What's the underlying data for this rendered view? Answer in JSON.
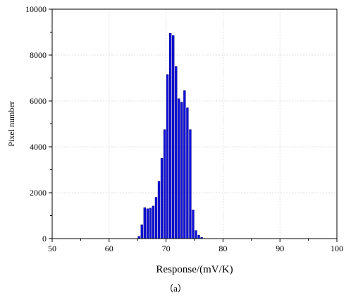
{
  "chart_data": {
    "type": "bar",
    "title": "",
    "xlabel": "Response/(mV/K)",
    "ylabel": "Pixel number",
    "xlim": [
      50,
      100
    ],
    "ylim": [
      0,
      10000
    ],
    "x_ticks": [
      50,
      60,
      70,
      80,
      90,
      100
    ],
    "y_ticks": [
      0,
      2000,
      4000,
      6000,
      8000,
      10000
    ],
    "grid": true,
    "bar_color": "#1010e0",
    "bar_edge_color": "#000080",
    "bin_width": 0.5,
    "x": [
      65.25,
      65.75,
      66.25,
      66.75,
      67.25,
      67.75,
      68.25,
      68.75,
      69.25,
      69.75,
      70.25,
      70.75,
      71.25,
      71.75,
      72.25,
      72.75,
      73.25,
      73.75,
      74.25,
      74.75,
      75.25,
      75.75,
      76.25
    ],
    "values": [
      100,
      600,
      1350,
      1300,
      1330,
      1420,
      1800,
      2500,
      3500,
      4750,
      7150,
      8950,
      8850,
      7500,
      6100,
      5950,
      6450,
      5700,
      4750,
      1250,
      350,
      150,
      50
    ]
  },
  "caption": "（a）"
}
